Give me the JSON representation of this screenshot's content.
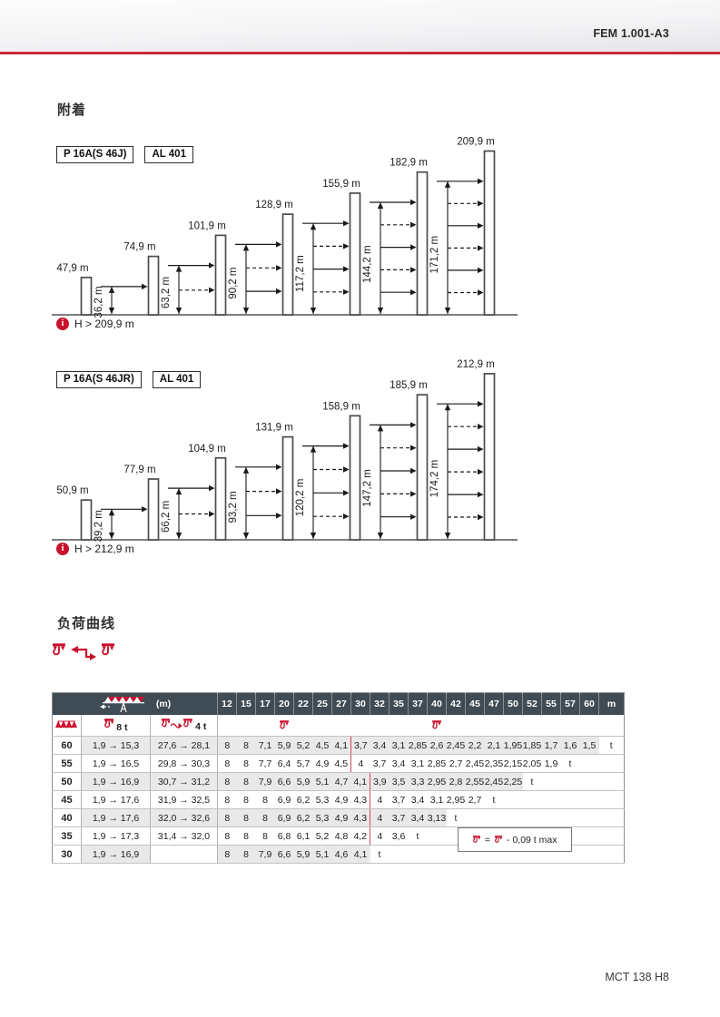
{
  "page": {
    "header_code": "FEM 1.001-A3",
    "footer_code": "MCT 138 H8"
  },
  "sections": {
    "anchoring": "附着",
    "load_curve": "负荷曲线"
  },
  "colors": {
    "accent_red": "#c9102c",
    "table_break_red": "#d6465d",
    "header_dark": "#3f4c55",
    "row_gray": "#e9e9e9",
    "banner_rule_red": "#c9293a"
  },
  "diagrams": [
    {
      "model": "P 16A(S 46J)",
      "system": "AL 401",
      "note": "H > 209,9 m",
      "masts": [
        {
          "height_m": 47.9,
          "label": "47,9 m",
          "tie_m": null,
          "tie_label": "",
          "ties": 0
        },
        {
          "height_m": 74.9,
          "label": "74,9 m",
          "tie_m": 36.2,
          "tie_label": "36,2 m",
          "ties": 1
        },
        {
          "height_m": 101.9,
          "label": "101,9 m",
          "tie_m": 63.2,
          "tie_label": "63,2 m",
          "ties": 2
        },
        {
          "height_m": 128.9,
          "label": "128,9 m",
          "tie_m": 90.2,
          "tie_label": "90,2 m",
          "ties": 3
        },
        {
          "height_m": 155.9,
          "label": "155,9 m",
          "tie_m": 117.2,
          "tie_label": "117,2 m",
          "ties": 4
        },
        {
          "height_m": 182.9,
          "label": "182,9 m",
          "tie_m": 144.2,
          "tie_label": "144,2 m",
          "ties": 5
        },
        {
          "height_m": 209.9,
          "label": "209,9 m",
          "tie_m": 171.2,
          "tie_label": "171,2 m",
          "ties": 6
        }
      ]
    },
    {
      "model": "P 16A(S 46JR)",
      "system": "AL 401",
      "note": "H > 212,9 m",
      "masts": [
        {
          "height_m": 50.9,
          "label": "50,9 m",
          "tie_m": null,
          "tie_label": "",
          "ties": 0
        },
        {
          "height_m": 77.9,
          "label": "77,9 m",
          "tie_m": 39.2,
          "tie_label": "39,2 m",
          "ties": 1
        },
        {
          "height_m": 104.9,
          "label": "104,9 m",
          "tie_m": 66.2,
          "tie_label": "66,2 m",
          "ties": 2
        },
        {
          "height_m": 131.9,
          "label": "131,9 m",
          "tie_m": 93.2,
          "tie_label": "93,2 m",
          "ties": 3
        },
        {
          "height_m": 158.9,
          "label": "158,9 m",
          "tie_m": 120.2,
          "tie_label": "120,2 m",
          "ties": 4
        },
        {
          "height_m": 185.9,
          "label": "185,9 m",
          "tie_m": 147.2,
          "tie_label": "147,2 m",
          "ties": 5
        },
        {
          "height_m": 212.9,
          "label": "212,9 m",
          "tie_m": 174.2,
          "tie_label": "174,2 m",
          "ties": 6
        }
      ]
    }
  ],
  "load_table": {
    "unit_label": "(m)",
    "radius_columns": [
      "12",
      "15",
      "17",
      "20",
      "22",
      "25",
      "27",
      "30",
      "32",
      "35",
      "37",
      "40",
      "42",
      "45",
      "47",
      "50",
      "52",
      "55",
      "57",
      "60",
      "m"
    ],
    "subheader": {
      "hoist_8t": "8 t",
      "hoist_4t": "4 t"
    },
    "rows": [
      {
        "jib": "60",
        "range1": "1,9 → 15,3",
        "range2": "27,6 → 28,1",
        "shaded": true,
        "break_after": 6,
        "values": [
          "8",
          "8",
          "7,1",
          "5,9",
          "5,2",
          "4,5",
          "4,1",
          "3,7",
          "3,4",
          "3,1",
          "2,85",
          "2,6",
          "2,45",
          "2,2",
          "2,1",
          "1,95",
          "1,85",
          "1,7",
          "1,6",
          "1,5",
          "t"
        ]
      },
      {
        "jib": "55",
        "range1": "1,9 → 16,5",
        "range2": "29,8 → 30,3",
        "shaded": false,
        "break_after": 6,
        "values": [
          "8",
          "8",
          "7,7",
          "6,4",
          "5,7",
          "4,9",
          "4,5",
          "4",
          "3,7",
          "3,4",
          "3,1",
          "2,85",
          "2,7",
          "2,45",
          "2,35",
          "2,15",
          "2,05",
          "1,9",
          "t",
          "",
          ""
        ]
      },
      {
        "jib": "50",
        "range1": "1,9 → 16,9",
        "range2": "30,7 → 31,2",
        "shaded": true,
        "break_after": 7,
        "values": [
          "8",
          "8",
          "7,9",
          "6,6",
          "5,9",
          "5,1",
          "4,7",
          "4,1",
          "3,9",
          "3,5",
          "3,3",
          "2,95",
          "2,8",
          "2,55",
          "2,45",
          "2,25",
          "t",
          "",
          "",
          "",
          ""
        ]
      },
      {
        "jib": "45",
        "range1": "1,9 → 17,6",
        "range2": "31,9 → 32,5",
        "shaded": false,
        "break_after": 7,
        "values": [
          "8",
          "8",
          "8",
          "6,9",
          "6,2",
          "5,3",
          "4,9",
          "4,3",
          "4",
          "3,7",
          "3,4",
          "3,1",
          "2,95",
          "2,7",
          "t",
          "",
          "",
          "",
          "",
          "",
          ""
        ]
      },
      {
        "jib": "40",
        "range1": "1,9 → 17,6",
        "range2": "32,0 → 32,6",
        "shaded": true,
        "break_after": 7,
        "values": [
          "8",
          "8",
          "8",
          "6,9",
          "6,2",
          "5,3",
          "4,9",
          "4,3",
          "4",
          "3,7",
          "3,4",
          "3,13",
          "t",
          "",
          "",
          "",
          "",
          "",
          "",
          "",
          ""
        ]
      },
      {
        "jib": "35",
        "range1": "1,9 → 17,3",
        "range2": "31,4 → 32,0",
        "shaded": false,
        "break_after": 7,
        "values": [
          "8",
          "8",
          "8",
          "6,8",
          "6,1",
          "5,2",
          "4,8",
          "4,2",
          "4",
          "3,6",
          "t",
          "",
          "",
          "",
          "",
          "",
          "",
          "",
          "",
          "",
          ""
        ]
      },
      {
        "jib": "30",
        "range1": "1,9 → 16,9",
        "range2": "",
        "shaded": true,
        "break_after": null,
        "values": [
          "8",
          "8",
          "7,9",
          "6,6",
          "5,9",
          "5,1",
          "4,6",
          "4,1",
          "t",
          "",
          "",
          "",
          "",
          "",
          "",
          "",
          "",
          "",
          "",
          "",
          ""
        ]
      }
    ],
    "note_equals": "=",
    "note": "- 0,09 t max"
  }
}
